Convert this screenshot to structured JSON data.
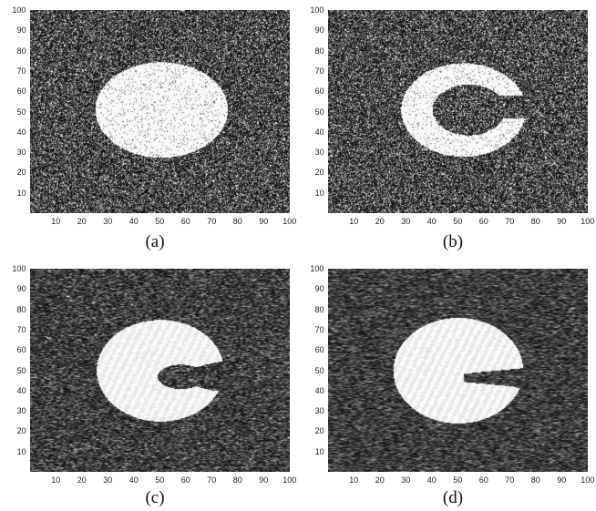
{
  "figure": {
    "panels": [
      {
        "id": "a",
        "caption": "(a)",
        "shape": "disk",
        "smooth": 0,
        "gap": 0,
        "core": 0
      },
      {
        "id": "b",
        "caption": "(b)",
        "shape": "ring-open",
        "smooth": 0,
        "gap": 0,
        "core": 0
      },
      {
        "id": "c",
        "caption": "(c)",
        "shape": "c-shape",
        "smooth": 1,
        "gap": 1,
        "core": 0
      },
      {
        "id": "d",
        "caption": "(d)",
        "shape": "disk-slot",
        "smooth": 2,
        "gap": 1,
        "core": 1
      }
    ],
    "x_ticks": [
      "10",
      "20",
      "30",
      "40",
      "50",
      "60",
      "70",
      "80",
      "90",
      "100"
    ],
    "y_ticks": [
      "100",
      "90",
      "80",
      "70",
      "60",
      "50",
      "40",
      "30",
      "20",
      "10"
    ],
    "axis_range": [
      0,
      100
    ],
    "colormap": "gray"
  }
}
